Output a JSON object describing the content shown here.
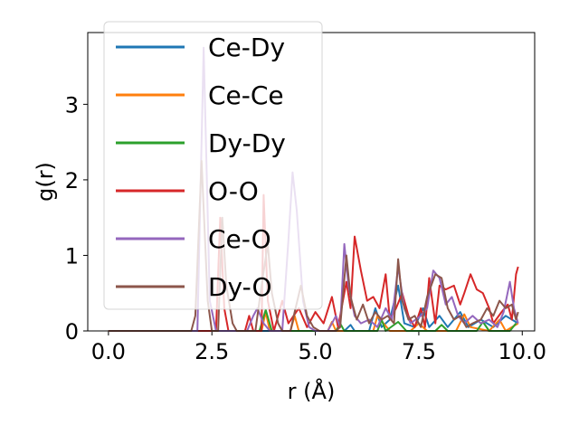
{
  "chart_data": {
    "type": "line",
    "xlabel": "r (Å)",
    "ylabel": "g(r)",
    "xlim": [
      -0.5,
      10.3
    ],
    "ylim": [
      0,
      3.95
    ],
    "xticks": [
      0.0,
      2.5,
      5.0,
      7.5,
      10.0
    ],
    "xtick_labels": [
      "0.0",
      "2.5",
      "5.0",
      "7.5",
      "10.0"
    ],
    "yticks": [
      0,
      1,
      2,
      3
    ],
    "ytick_labels": [
      "0",
      "1",
      "2",
      "3"
    ],
    "grid": false,
    "legend_position": "top-left",
    "legend_alpha": 0.8,
    "series": [
      {
        "name": "Ce-Dy",
        "color": "#1f77b4",
        "points": [
          [
            0,
            0
          ],
          [
            5.7,
            0
          ],
          [
            5.85,
            0.08
          ],
          [
            5.95,
            0
          ],
          [
            6.3,
            0
          ],
          [
            6.45,
            0.3
          ],
          [
            6.6,
            0.05
          ],
          [
            6.8,
            0.15
          ],
          [
            7.0,
            0.6
          ],
          [
            7.15,
            0.1
          ],
          [
            7.4,
            0.05
          ],
          [
            7.6,
            0.3
          ],
          [
            7.75,
            0.05
          ],
          [
            8.0,
            0.2
          ],
          [
            8.2,
            0.05
          ],
          [
            8.5,
            0.25
          ],
          [
            8.7,
            0.05
          ],
          [
            9.0,
            0.15
          ],
          [
            9.3,
            0.05
          ],
          [
            9.6,
            0.2
          ],
          [
            9.9,
            0.1
          ]
        ]
      },
      {
        "name": "Ce-Ce",
        "color": "#ff7f0e",
        "points": [
          [
            0,
            0
          ],
          [
            3.7,
            0
          ],
          [
            3.8,
            0.25
          ],
          [
            3.9,
            0
          ],
          [
            4.4,
            0
          ],
          [
            4.5,
            0.2
          ],
          [
            4.6,
            0
          ],
          [
            5.3,
            0
          ],
          [
            5.4,
            0.12
          ],
          [
            5.5,
            0
          ],
          [
            6.4,
            0
          ],
          [
            6.5,
            0.2
          ],
          [
            6.65,
            0.1
          ],
          [
            6.8,
            0
          ],
          [
            7.3,
            0
          ],
          [
            7.5,
            0.1
          ],
          [
            7.7,
            0
          ],
          [
            8.4,
            0
          ],
          [
            8.6,
            0.22
          ],
          [
            8.75,
            0.05
          ],
          [
            9.2,
            0
          ],
          [
            9.45,
            0.15
          ],
          [
            9.6,
            0
          ],
          [
            9.9,
            0.1
          ]
        ]
      },
      {
        "name": "Dy-Dy",
        "color": "#2ca02c",
        "points": [
          [
            0,
            0
          ],
          [
            3.65,
            0
          ],
          [
            3.8,
            0.28
          ],
          [
            3.95,
            0
          ],
          [
            5.5,
            0
          ],
          [
            5.6,
            0.1
          ],
          [
            5.7,
            0
          ],
          [
            6.5,
            0
          ],
          [
            6.6,
            0.15
          ],
          [
            6.7,
            0
          ],
          [
            7.0,
            0.12
          ],
          [
            7.2,
            0
          ],
          [
            7.9,
            0
          ],
          [
            8.05,
            0.08
          ],
          [
            8.2,
            0
          ],
          [
            8.9,
            0
          ],
          [
            9.05,
            0.12
          ],
          [
            9.2,
            0
          ],
          [
            9.7,
            0
          ],
          [
            9.85,
            0.1
          ]
        ]
      },
      {
        "name": "O-O",
        "color": "#d62728",
        "points": [
          [
            0,
            0
          ],
          [
            2.6,
            0
          ],
          [
            2.7,
            1.5
          ],
          [
            2.8,
            0.3
          ],
          [
            2.9,
            0
          ],
          [
            3.3,
            0
          ],
          [
            3.4,
            0.2
          ],
          [
            3.5,
            0
          ],
          [
            3.7,
            0
          ],
          [
            3.75,
            1.8
          ],
          [
            3.85,
            0.4
          ],
          [
            4.0,
            0
          ],
          [
            4.2,
            0.4
          ],
          [
            4.35,
            0.1
          ],
          [
            4.6,
            0.3
          ],
          [
            4.8,
            0.05
          ],
          [
            5.0,
            0.25
          ],
          [
            5.2,
            0.1
          ],
          [
            5.4,
            0.45
          ],
          [
            5.55,
            0.05
          ],
          [
            5.75,
            0.65
          ],
          [
            5.85,
            0.3
          ],
          [
            5.95,
            1.25
          ],
          [
            6.1,
            0.8
          ],
          [
            6.25,
            0.4
          ],
          [
            6.4,
            0.45
          ],
          [
            6.55,
            0.3
          ],
          [
            6.7,
            0.75
          ],
          [
            6.8,
            0.15
          ],
          [
            6.95,
            0.3
          ],
          [
            7.1,
            0.5
          ],
          [
            7.25,
            0.2
          ],
          [
            7.4,
            0.05
          ],
          [
            7.55,
            0.3
          ],
          [
            7.65,
            0.05
          ],
          [
            7.75,
            0.7
          ],
          [
            7.9,
            0.1
          ],
          [
            8.0,
            0.6
          ],
          [
            8.15,
            0.55
          ],
          [
            8.35,
            0.6
          ],
          [
            8.5,
            0.35
          ],
          [
            8.6,
            0.5
          ],
          [
            8.75,
            0.75
          ],
          [
            8.9,
            0.55
          ],
          [
            9.05,
            0.5
          ],
          [
            9.2,
            0.3
          ],
          [
            9.3,
            0.1
          ],
          [
            9.5,
            0.25
          ],
          [
            9.65,
            0.35
          ],
          [
            9.75,
            0.15
          ],
          [
            9.85,
            0.75
          ],
          [
            9.9,
            0.85
          ]
        ]
      },
      {
        "name": "Ce-O",
        "color": "#9467bd",
        "points": [
          [
            0,
            0
          ],
          [
            2.15,
            0
          ],
          [
            2.3,
            3.75
          ],
          [
            2.45,
            0.4
          ],
          [
            2.6,
            0
          ],
          [
            3.35,
            0
          ],
          [
            3.5,
            0.2
          ],
          [
            3.6,
            0.3
          ],
          [
            3.75,
            0.1
          ],
          [
            3.9,
            0
          ],
          [
            4.2,
            0
          ],
          [
            4.35,
            1.2
          ],
          [
            4.45,
            2.1
          ],
          [
            4.55,
            1.6
          ],
          [
            4.7,
            0.4
          ],
          [
            4.85,
            0.05
          ],
          [
            5.0,
            0
          ],
          [
            5.3,
            0
          ],
          [
            5.5,
            0.2
          ],
          [
            5.6,
            0.05
          ],
          [
            5.7,
            1.15
          ],
          [
            5.8,
            0.6
          ],
          [
            5.95,
            0.2
          ],
          [
            6.1,
            0.1
          ],
          [
            6.3,
            0.15
          ],
          [
            6.5,
            0.05
          ],
          [
            6.7,
            0.3
          ],
          [
            6.85,
            0.15
          ],
          [
            7.0,
            0.85
          ],
          [
            7.15,
            0.3
          ],
          [
            7.3,
            0.1
          ],
          [
            7.55,
            0.2
          ],
          [
            7.7,
            0.3
          ],
          [
            7.85,
            0.8
          ],
          [
            8.0,
            0.7
          ],
          [
            8.15,
            0.35
          ],
          [
            8.3,
            0.45
          ],
          [
            8.45,
            0.2
          ],
          [
            8.6,
            0.1
          ],
          [
            8.8,
            0.2
          ],
          [
            9.0,
            0.1
          ],
          [
            9.2,
            0.15
          ],
          [
            9.4,
            0.05
          ],
          [
            9.55,
            0.25
          ],
          [
            9.7,
            0.65
          ],
          [
            9.8,
            0.3
          ],
          [
            9.9,
            0.1
          ]
        ]
      },
      {
        "name": "Dy-O",
        "color": "#8c564b",
        "points": [
          [
            0,
            0
          ],
          [
            2.0,
            0
          ],
          [
            2.1,
            0.2
          ],
          [
            2.25,
            2.25
          ],
          [
            2.4,
            0.4
          ],
          [
            2.5,
            0
          ],
          [
            2.65,
            0
          ],
          [
            2.75,
            1.5
          ],
          [
            2.85,
            0.6
          ],
          [
            3.0,
            0.1
          ],
          [
            3.1,
            0
          ],
          [
            3.55,
            0
          ],
          [
            3.7,
            0.6
          ],
          [
            3.85,
            1.15
          ],
          [
            3.95,
            0.5
          ],
          [
            4.1,
            0.1
          ],
          [
            4.2,
            0
          ],
          [
            4.4,
            0
          ],
          [
            4.5,
            0.25
          ],
          [
            4.65,
            0.6
          ],
          [
            4.8,
            0.2
          ],
          [
            4.95,
            0.05
          ],
          [
            5.1,
            0
          ],
          [
            5.5,
            0
          ],
          [
            5.6,
            0.05
          ],
          [
            5.75,
            1.0
          ],
          [
            5.85,
            0.45
          ],
          [
            6.0,
            0.15
          ],
          [
            6.15,
            0.35
          ],
          [
            6.3,
            0.1
          ],
          [
            6.45,
            0.25
          ],
          [
            6.6,
            0.15
          ],
          [
            6.75,
            0.2
          ],
          [
            6.9,
            0.1
          ],
          [
            7.0,
            0.95
          ],
          [
            7.1,
            0.4
          ],
          [
            7.25,
            0.15
          ],
          [
            7.4,
            0.2
          ],
          [
            7.55,
            0.05
          ],
          [
            7.7,
            0.45
          ],
          [
            7.9,
            0.75
          ],
          [
            8.05,
            0.7
          ],
          [
            8.2,
            0.3
          ],
          [
            8.35,
            0.15
          ],
          [
            8.5,
            0.2
          ],
          [
            8.65,
            0.05
          ],
          [
            8.8,
            0.1
          ],
          [
            9.0,
            0.15
          ],
          [
            9.15,
            0.3
          ],
          [
            9.3,
            0.2
          ],
          [
            9.45,
            0.4
          ],
          [
            9.6,
            0.3
          ],
          [
            9.75,
            0.35
          ],
          [
            9.85,
            0.15
          ],
          [
            9.9,
            0.25
          ]
        ]
      }
    ]
  }
}
